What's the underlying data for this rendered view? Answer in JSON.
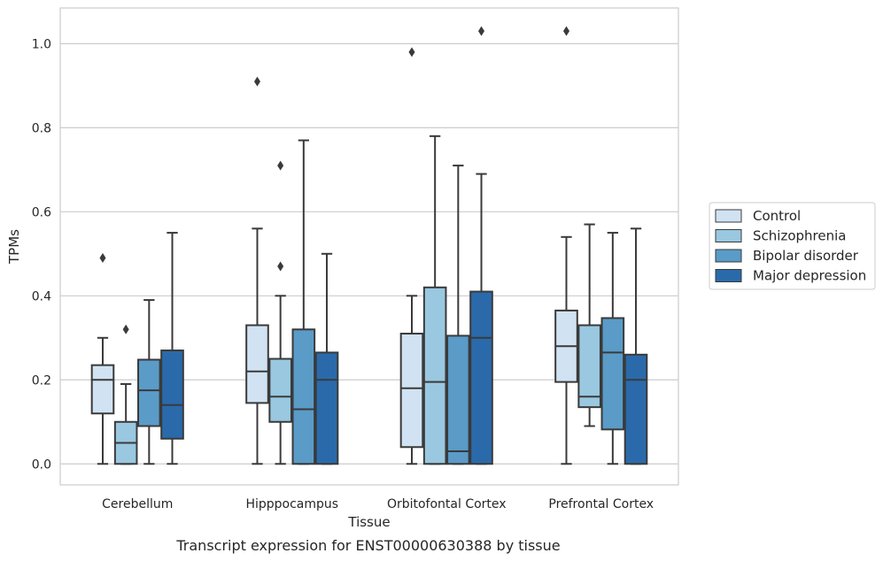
{
  "caption": "Transcript expression for ENST00000630388 by tissue",
  "chart_data": {
    "type": "box",
    "xlabel": "Tissue",
    "ylabel": "TPMs",
    "ylim": [
      -0.05,
      1.085
    ],
    "yticks": [
      "0.0",
      "0.2",
      "0.4",
      "0.6",
      "0.8",
      "1.0"
    ],
    "grid": "horizontal",
    "legend_position": "right",
    "categories": [
      "Cerebellum",
      "Hipppocampus",
      "Orbitofontal Cortex",
      "Prefrontal Cortex"
    ],
    "series": [
      {
        "name": "Control",
        "color": "#d1e2f2",
        "boxes": [
          {
            "whislo": 0.0,
            "q1": 0.12,
            "med": 0.2,
            "q3": 0.235,
            "whishi": 0.3,
            "fliers": [
              0.49
            ]
          },
          {
            "whislo": 0.0,
            "q1": 0.145,
            "med": 0.22,
            "q3": 0.33,
            "whishi": 0.56,
            "fliers": [
              0.91
            ]
          },
          {
            "whislo": 0.0,
            "q1": 0.04,
            "med": 0.18,
            "q3": 0.31,
            "whishi": 0.4,
            "fliers": [
              0.98
            ]
          },
          {
            "whislo": 0.0,
            "q1": 0.195,
            "med": 0.28,
            "q3": 0.365,
            "whishi": 0.54,
            "fliers": [
              1.03
            ]
          }
        ]
      },
      {
        "name": "Schizophrenia",
        "color": "#9ac8e0",
        "boxes": [
          {
            "whislo": 0.0,
            "q1": 0.0,
            "med": 0.05,
            "q3": 0.1,
            "whishi": 0.19,
            "fliers": [
              0.32
            ]
          },
          {
            "whislo": 0.0,
            "q1": 0.1,
            "med": 0.16,
            "q3": 0.25,
            "whishi": 0.4,
            "fliers": [
              0.47,
              0.71
            ]
          },
          {
            "whislo": 0.0,
            "q1": 0.0,
            "med": 0.195,
            "q3": 0.42,
            "whishi": 0.78,
            "fliers": []
          },
          {
            "whislo": 0.09,
            "q1": 0.135,
            "med": 0.16,
            "q3": 0.33,
            "whishi": 0.57,
            "fliers": []
          }
        ]
      },
      {
        "name": "Bipolar disorder",
        "color": "#5a9bc8",
        "boxes": [
          {
            "whislo": 0.0,
            "q1": 0.09,
            "med": 0.175,
            "q3": 0.248,
            "whishi": 0.39,
            "fliers": []
          },
          {
            "whislo": 0.0,
            "q1": 0.0,
            "med": 0.13,
            "q3": 0.32,
            "whishi": 0.77,
            "fliers": []
          },
          {
            "whislo": 0.0,
            "q1": 0.0,
            "med": 0.03,
            "q3": 0.305,
            "whishi": 0.71,
            "fliers": []
          },
          {
            "whislo": 0.0,
            "q1": 0.082,
            "med": 0.265,
            "q3": 0.347,
            "whishi": 0.55,
            "fliers": []
          }
        ]
      },
      {
        "name": "Major depression",
        "color": "#2a6aab",
        "boxes": [
          {
            "whislo": 0.0,
            "q1": 0.06,
            "med": 0.14,
            "q3": 0.27,
            "whishi": 0.55,
            "fliers": []
          },
          {
            "whislo": 0.0,
            "q1": 0.0,
            "med": 0.2,
            "q3": 0.265,
            "whishi": 0.5,
            "fliers": []
          },
          {
            "whislo": 0.0,
            "q1": 0.0,
            "med": 0.3,
            "q3": 0.41,
            "whishi": 0.69,
            "fliers": [
              1.03
            ]
          },
          {
            "whislo": 0.0,
            "q1": 0.0,
            "med": 0.2,
            "q3": 0.26,
            "whishi": 0.56,
            "fliers": []
          }
        ]
      }
    ]
  }
}
